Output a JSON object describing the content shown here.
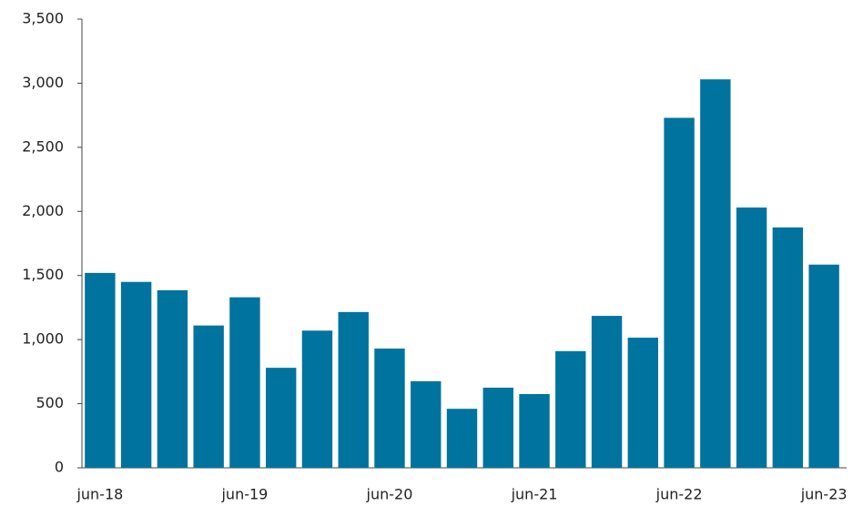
{
  "chart_data": {
    "type": "bar",
    "categories": [
      "jun-18",
      null,
      null,
      null,
      "jun-19",
      null,
      null,
      null,
      "jun-20",
      null,
      null,
      null,
      "jun-21",
      null,
      null,
      null,
      "jun-22",
      null,
      null,
      null,
      "jun-23"
    ],
    "values": [
      1520,
      1450,
      1385,
      1110,
      1330,
      780,
      1070,
      1215,
      930,
      675,
      460,
      625,
      575,
      910,
      1185,
      1015,
      2730,
      3030,
      2030,
      1875,
      1585
    ],
    "color": "#00739e",
    "ylim": [
      0,
      3500
    ],
    "yticks": [
      0,
      500,
      {
        "value": 1000,
        "label": "1,000"
      },
      {
        "value": 1500,
        "label": "1,500"
      },
      {
        "value": 2000,
        "label": "2,000"
      },
      {
        "value": 2500,
        "label": "2,500"
      },
      {
        "value": 3000,
        "label": "3,000"
      },
      {
        "value": 3500,
        "label": "3,500"
      }
    ],
    "grid": false
  }
}
